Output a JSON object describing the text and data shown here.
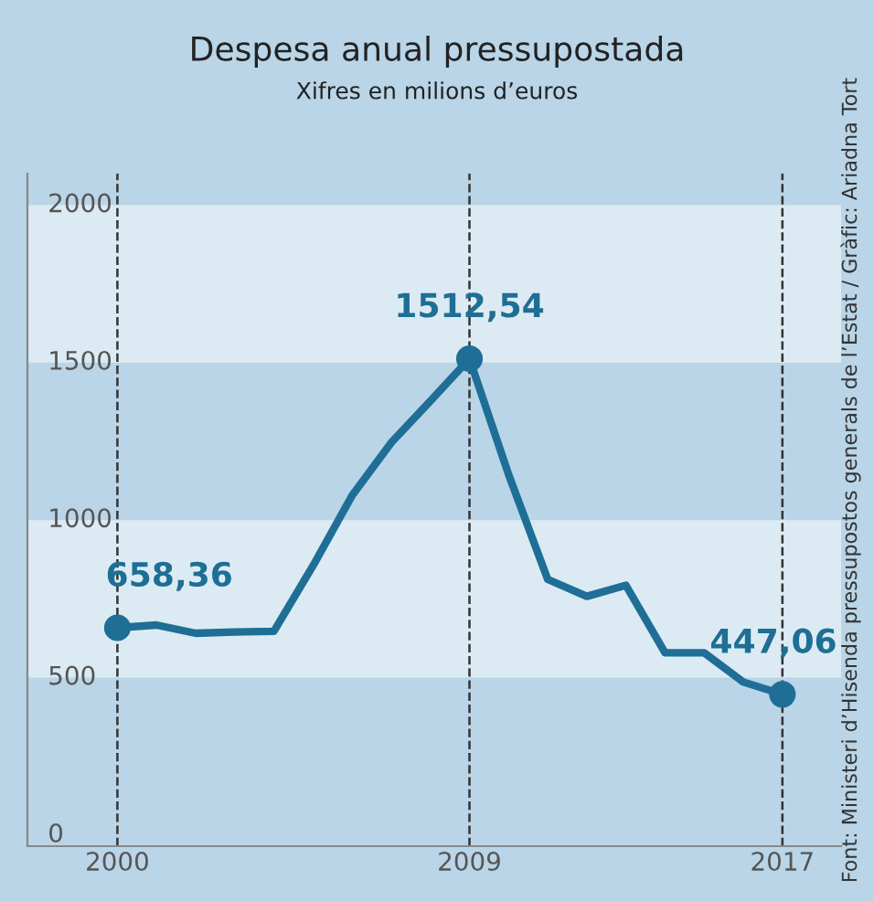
{
  "chart_data": {
    "type": "line",
    "title": "Despesa anual pressupostada",
    "subtitle": "Xifres en milions d’euros",
    "x": [
      2000,
      2001,
      2002,
      2003,
      2004,
      2005,
      2006,
      2007,
      2008,
      2009,
      2010,
      2011,
      2012,
      2013,
      2014,
      2015,
      2016,
      2017
    ],
    "series": [
      {
        "color": "#1f6e96",
        "values": [
          658.36,
          667,
          641,
          645,
          647,
          855,
          1078,
          1246,
          1378,
          1512.54,
          1145,
          812,
          758,
          793,
          579,
          579,
          486,
          447.06
        ],
        "value_labels": [
          "658,36",
          null,
          null,
          null,
          null,
          null,
          null,
          null,
          null,
          "1512,54",
          null,
          null,
          null,
          null,
          null,
          null,
          null,
          "447,06"
        ]
      }
    ],
    "xlim": [
      1997.7,
      2018.5
    ],
    "ylim": [
      -35,
      2100
    ],
    "xticks": [
      2000,
      2009,
      2017
    ],
    "yticks": [
      0,
      500,
      1000,
      1500,
      2000
    ],
    "bands": [
      {
        "axis": "y",
        "from": 500,
        "to": 1000,
        "color": "#dcebf3"
      },
      {
        "axis": "y",
        "from": 1500,
        "to": 2000,
        "color": "#dcebf3"
      }
    ],
    "ref_lines": [
      {
        "axis": "x",
        "value": 2000,
        "line_style": "dashed"
      },
      {
        "axis": "x",
        "value": 2009,
        "line_style": "dashed"
      },
      {
        "axis": "x",
        "value": 2017,
        "line_style": "dashed"
      }
    ],
    "annotations": [
      "Font: Ministeri d’Hisenda pressupostos generals de l’Estat / Gràfic: Ariadna Tort"
    ],
    "grid": false,
    "legend": false,
    "line_style": "solid"
  }
}
